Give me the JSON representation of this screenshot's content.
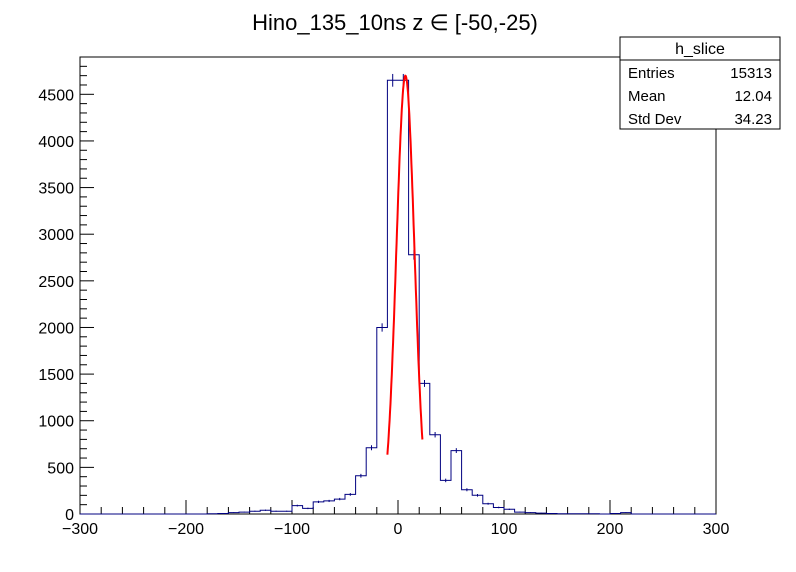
{
  "chart_data": {
    "type": "bar",
    "title": "Hino_135_10ns z  ∈ [-50,-25)",
    "xlabel": "",
    "ylabel": "",
    "xlim": [
      -300,
      300
    ],
    "ylim": [
      0,
      4900
    ],
    "bin_width": 10,
    "x_ticks": [
      -300,
      -200,
      -100,
      0,
      100,
      200,
      300
    ],
    "y_ticks": [
      0,
      500,
      1000,
      1500,
      2000,
      2500,
      3000,
      3500,
      4000,
      4500
    ],
    "grid": false,
    "series": [
      {
        "name": "h_slice",
        "color": "#000080",
        "bin_centers": [
          -295,
          -285,
          -275,
          -265,
          -255,
          -245,
          -235,
          -225,
          -215,
          -205,
          -195,
          -185,
          -175,
          -165,
          -155,
          -145,
          -135,
          -125,
          -115,
          -105,
          -95,
          -85,
          -75,
          -65,
          -55,
          -45,
          -35,
          -25,
          -15,
          -5,
          5,
          15,
          25,
          35,
          45,
          55,
          65,
          75,
          85,
          95,
          105,
          115,
          125,
          135,
          145,
          155,
          165,
          175,
          185,
          195,
          205,
          215,
          225,
          235,
          245,
          255,
          265,
          275,
          285,
          295
        ],
        "values": [
          0,
          0,
          0,
          0,
          0,
          0,
          0,
          0,
          0,
          0,
          0,
          0,
          3,
          5,
          15,
          20,
          30,
          40,
          30,
          30,
          90,
          60,
          130,
          140,
          160,
          210,
          410,
          710,
          2000,
          4650,
          4650,
          2780,
          1400,
          850,
          360,
          680,
          260,
          200,
          110,
          70,
          50,
          20,
          15,
          10,
          5,
          3,
          2,
          2,
          2,
          0,
          5,
          15,
          0,
          0,
          0,
          0,
          0,
          0,
          0,
          0
        ],
        "errors": [
          0,
          0,
          0,
          0,
          0,
          0,
          0,
          0,
          0,
          0,
          0,
          0,
          1.7,
          2.2,
          3.9,
          4.5,
          5.5,
          6.3,
          5.5,
          5.5,
          9.5,
          7.7,
          11.4,
          11.8,
          12.6,
          14.5,
          20.2,
          26.6,
          44.7,
          68.2,
          68.2,
          52.7,
          37.4,
          29.2,
          19.0,
          26.1,
          16.1,
          14.1,
          10.5,
          8.4,
          7.1,
          4.5,
          3.9,
          3.2,
          2.2,
          1.7,
          1.4,
          1.4,
          1.4,
          0,
          2.2,
          3.9,
          0,
          0,
          0,
          0,
          0,
          0,
          0,
          0
        ]
      },
      {
        "name": "fit",
        "type": "line",
        "color": "#ff0000",
        "model": "gaussian",
        "constant": 4700,
        "mean": 7,
        "sigma": 8.5,
        "x_range": [
          -10,
          23
        ]
      }
    ],
    "stats_box": {
      "title": "h_slice",
      "rows": [
        {
          "label": "Entries",
          "value": "15313"
        },
        {
          "label": "Mean",
          "value": "12.04"
        },
        {
          "label": "Std Dev",
          "value": "34.23"
        }
      ]
    }
  }
}
